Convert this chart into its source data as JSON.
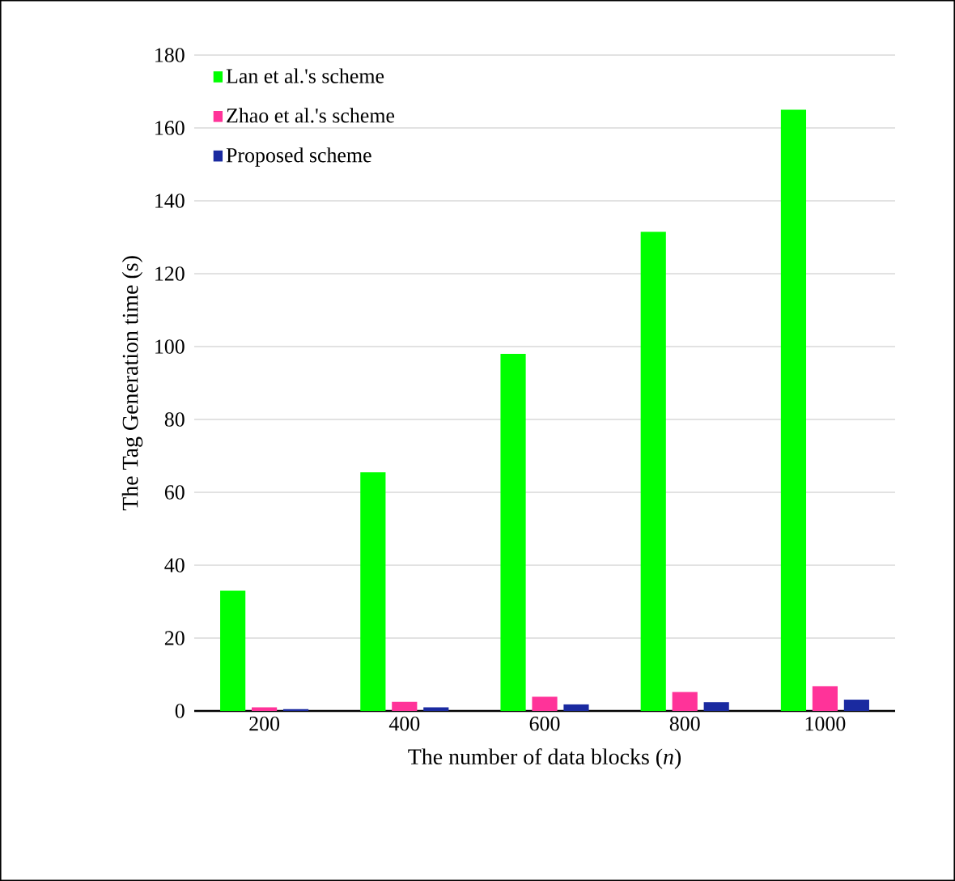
{
  "chart_data": {
    "type": "bar",
    "xlabel": "The number of data blocks (*n*)",
    "ylabel": "The Tag Generation time (s)",
    "categories": [
      "200",
      "400",
      "600",
      "800",
      "1000"
    ],
    "series": [
      {
        "name": "Lan et al.'s scheme",
        "color": "#00ff00",
        "values": [
          33,
          65.5,
          98,
          131.5,
          165
        ]
      },
      {
        "name": "Zhao et al.'s scheme",
        "color": "#ff3399",
        "values": [
          1.0,
          2.5,
          3.9,
          5.2,
          6.8
        ]
      },
      {
        "name": "Proposed scheme",
        "color": "#1a2aa0",
        "values": [
          0.5,
          1.0,
          1.8,
          2.4,
          3.1
        ]
      }
    ],
    "ylim": [
      0,
      180
    ],
    "yticks": [
      0,
      20,
      40,
      60,
      80,
      100,
      120,
      140,
      160,
      180
    ],
    "grid": "y",
    "legend": "top left"
  }
}
